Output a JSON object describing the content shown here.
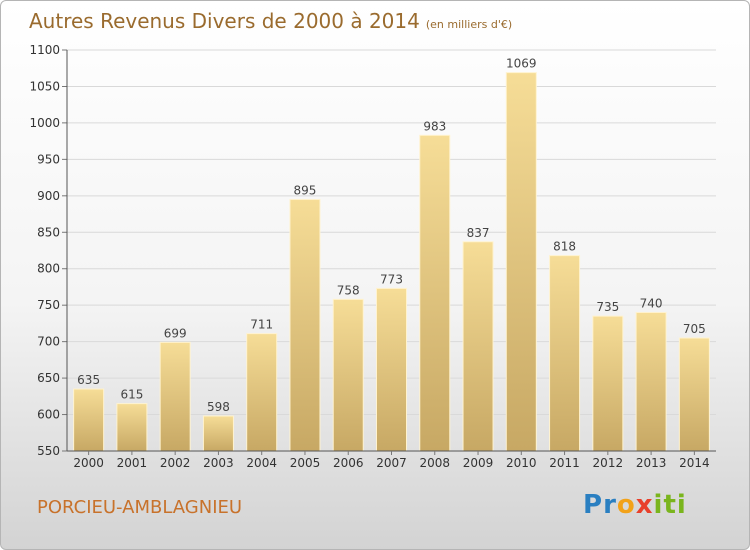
{
  "title": "Autres Revenus Divers de 2000 à 2014",
  "subtitle": "(en milliers d'€)",
  "location": "PORCIEU-AMBLAGNIEU",
  "logo": {
    "letters": [
      "P",
      "r",
      "o",
      "x",
      "i",
      "t",
      "i"
    ],
    "colors": [
      "#2a7fc1",
      "#2a7fc1",
      "#f2a219",
      "#e8402b",
      "#7ab51d",
      "#7ab51d",
      "#7ab51d"
    ]
  },
  "chart_data": {
    "type": "bar",
    "categories": [
      "2000",
      "2001",
      "2002",
      "2003",
      "2004",
      "2005",
      "2006",
      "2007",
      "2008",
      "2009",
      "2010",
      "2011",
      "2012",
      "2013",
      "2014"
    ],
    "values": [
      635,
      615,
      699,
      598,
      711,
      895,
      758,
      773,
      983,
      837,
      1069,
      818,
      735,
      740,
      705
    ],
    "ylim": [
      550,
      1100
    ],
    "yticks": [
      550,
      600,
      650,
      700,
      750,
      800,
      850,
      900,
      950,
      1000,
      1050,
      1100
    ],
    "grid": true,
    "bar_color": "#e7cc7f"
  }
}
